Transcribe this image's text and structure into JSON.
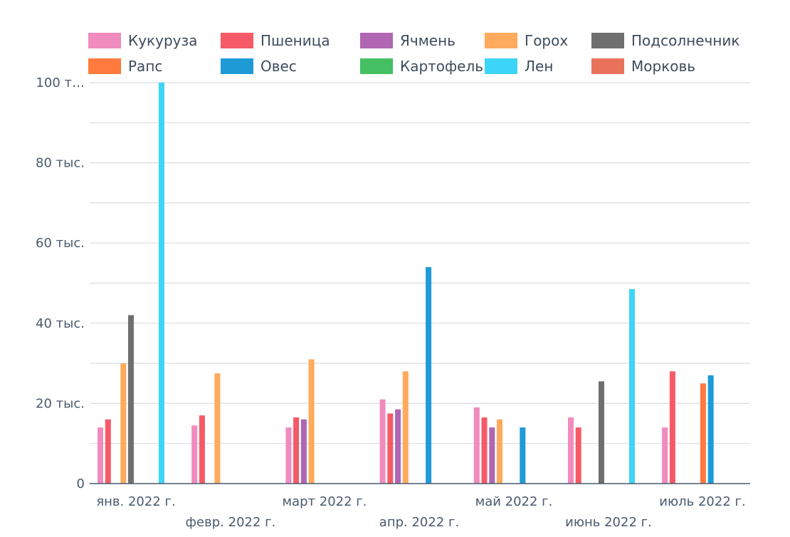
{
  "chart_data": {
    "type": "bar",
    "categories": [
      "янв. 2022 г.",
      "февр. 2022 г.",
      "март 2022 г.",
      "апр. 2022 г.",
      "май 2022 г.",
      "июнь 2022 г.",
      "июль 2022 г."
    ],
    "y_tick_labels": [
      "0",
      "20 тыс.",
      "40 тыс.",
      "60 тыс.",
      "80 тыс.",
      "100 т…"
    ],
    "y_ticks": [
      0,
      20000,
      40000,
      60000,
      80000,
      100000
    ],
    "ylim": [
      0,
      100000
    ],
    "grid": true,
    "legend_position": "top",
    "series": [
      {
        "name": "Кукуруза",
        "color": "#f08bbd",
        "values": [
          14000,
          14500,
          14000,
          21000,
          19000,
          16500,
          14000
        ]
      },
      {
        "name": "Пшеница",
        "color": "#f55a66",
        "values": [
          16000,
          17000,
          16500,
          17500,
          16500,
          14000,
          28000
        ]
      },
      {
        "name": "Ячмень",
        "color": "#b066b3",
        "values": [
          null,
          null,
          16000,
          18500,
          14000,
          null,
          null
        ]
      },
      {
        "name": "Горох",
        "color": "#ffaa5c",
        "values": [
          30000,
          27500,
          31000,
          28000,
          16000,
          null,
          null
        ]
      },
      {
        "name": "Подсолнечник",
        "color": "#6f6f6f",
        "values": [
          42000,
          null,
          null,
          null,
          null,
          25500,
          null
        ]
      },
      {
        "name": "Рапс",
        "color": "#ff7a3d",
        "values": [
          null,
          null,
          null,
          null,
          null,
          null,
          25000
        ]
      },
      {
        "name": "Овес",
        "color": "#1e9bd7",
        "values": [
          null,
          null,
          null,
          54000,
          14000,
          null,
          27000
        ]
      },
      {
        "name": "Картофель",
        "color": "#44c062",
        "values": [
          null,
          null,
          null,
          null,
          null,
          null,
          null
        ]
      },
      {
        "name": "Лен",
        "color": "#3dd5f7",
        "values": [
          100000,
          null,
          null,
          null,
          null,
          48500,
          null
        ]
      },
      {
        "name": "Морковь",
        "color": "#e8735a",
        "values": [
          null,
          null,
          null,
          null,
          null,
          null,
          null
        ]
      }
    ]
  }
}
